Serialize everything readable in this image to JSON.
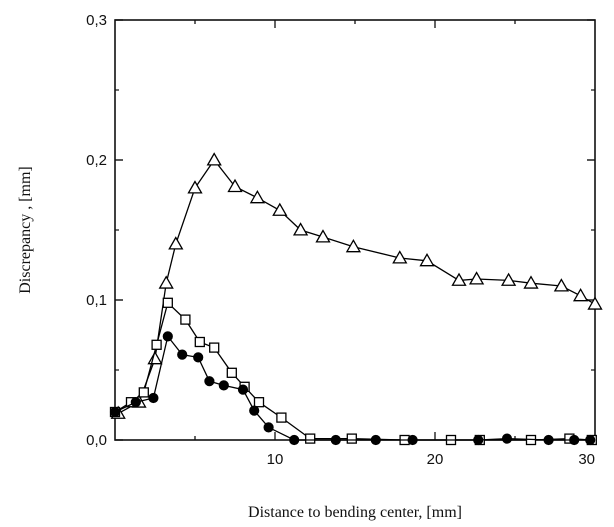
{
  "chart_data": {
    "type": "line",
    "xlabel": "Distance to bending center, [mm]",
    "ylabel": "Discrepancy , [mm]",
    "xlim": [
      0,
      30
    ],
    "ylim": [
      0,
      0.3
    ],
    "x_ticks": [
      {
        "value": 10,
        "label": "10"
      },
      {
        "value": 20,
        "label": "20"
      },
      {
        "value": 30,
        "label": "30"
      }
    ],
    "y_ticks": [
      {
        "value": 0.0,
        "label": "0,0"
      },
      {
        "value": 0.1,
        "label": "0,1"
      },
      {
        "value": 0.2,
        "label": "0,2"
      },
      {
        "value": 0.3,
        "label": "0,3"
      }
    ],
    "grid": false,
    "legend": false,
    "series": [
      {
        "marker": "triangle-open",
        "color": "#000000",
        "points": [
          [
            0.2,
            0.019
          ],
          [
            1.5,
            0.027
          ],
          [
            2.5,
            0.058
          ],
          [
            3.2,
            0.112
          ],
          [
            3.8,
            0.14
          ],
          [
            5.0,
            0.18
          ],
          [
            6.2,
            0.2
          ],
          [
            7.5,
            0.181
          ],
          [
            8.9,
            0.173
          ],
          [
            10.3,
            0.164
          ],
          [
            11.6,
            0.15
          ],
          [
            13.0,
            0.145
          ],
          [
            14.9,
            0.138
          ],
          [
            17.8,
            0.13
          ],
          [
            19.5,
            0.128
          ],
          [
            21.5,
            0.114
          ],
          [
            22.6,
            0.115
          ],
          [
            24.6,
            0.114
          ],
          [
            26.0,
            0.112
          ],
          [
            27.9,
            0.11
          ],
          [
            29.1,
            0.103
          ],
          [
            30.0,
            0.097
          ]
        ]
      },
      {
        "marker": "square-open",
        "color": "#000000",
        "points": [
          [
            0.0,
            0.02
          ],
          [
            1.0,
            0.027
          ],
          [
            1.8,
            0.034
          ],
          [
            2.6,
            0.068
          ],
          [
            3.3,
            0.098
          ],
          [
            4.4,
            0.086
          ],
          [
            5.3,
            0.07
          ],
          [
            6.2,
            0.066
          ],
          [
            7.3,
            0.048
          ],
          [
            8.1,
            0.038
          ],
          [
            9.0,
            0.027
          ],
          [
            10.4,
            0.016
          ],
          [
            12.2,
            0.001
          ],
          [
            14.8,
            0.001
          ],
          [
            18.1,
            0.0
          ],
          [
            21.0,
            0.0
          ],
          [
            22.8,
            0.0
          ],
          [
            26.0,
            0.0
          ],
          [
            28.4,
            0.001
          ],
          [
            29.8,
            0.0
          ]
        ]
      },
      {
        "marker": "circle-filled",
        "color": "#000000",
        "points": [
          [
            0.0,
            0.02
          ],
          [
            1.3,
            0.027
          ],
          [
            2.4,
            0.03
          ],
          [
            3.3,
            0.074
          ],
          [
            4.2,
            0.061
          ],
          [
            5.2,
            0.059
          ],
          [
            5.9,
            0.042
          ],
          [
            6.8,
            0.039
          ],
          [
            8.0,
            0.036
          ],
          [
            8.7,
            0.021
          ],
          [
            9.6,
            0.009
          ],
          [
            11.2,
            0.0
          ],
          [
            13.8,
            0.0
          ],
          [
            16.3,
            0.0
          ],
          [
            18.6,
            0.0
          ],
          [
            22.7,
            0.0
          ],
          [
            24.5,
            0.001
          ],
          [
            27.1,
            0.0
          ],
          [
            28.7,
            0.0
          ],
          [
            29.7,
            0.0
          ]
        ]
      }
    ]
  }
}
